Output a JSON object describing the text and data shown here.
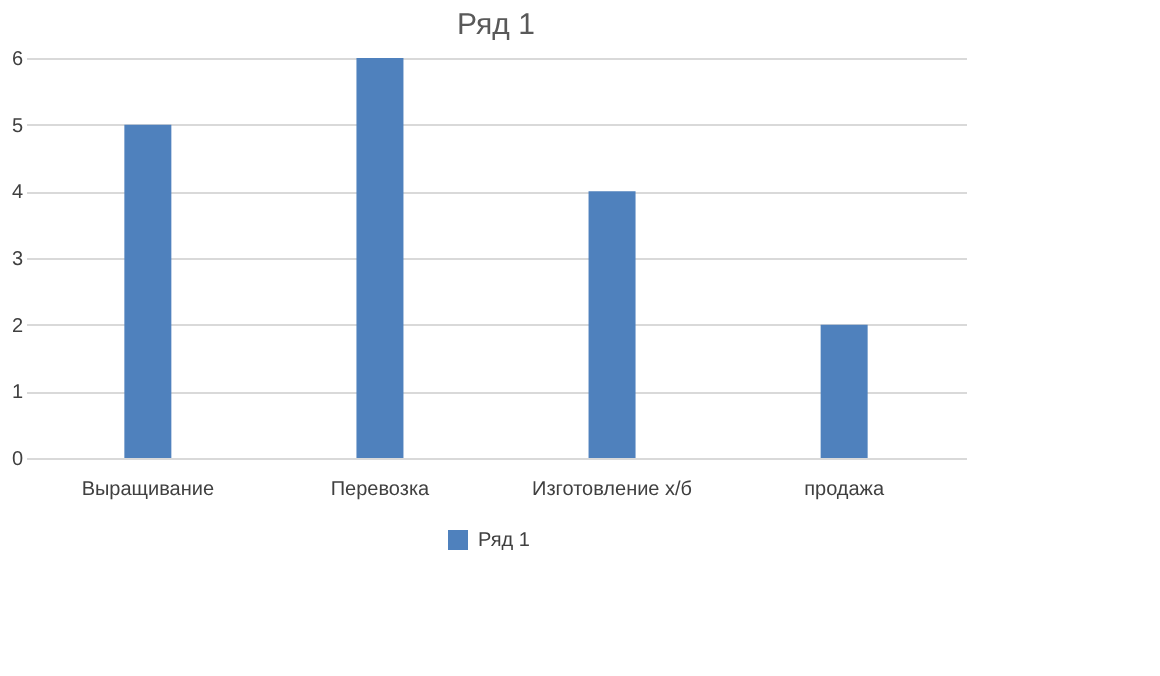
{
  "chart_data": {
    "type": "bar",
    "title": "Ряд 1",
    "categories": [
      "Выращивание",
      "Перевозка",
      "Изготовление х/б",
      "продажа"
    ],
    "series": [
      {
        "name": "Ряд 1",
        "color": "#4f81bd",
        "values": [
          5,
          6,
          4,
          2
        ]
      }
    ],
    "ylim": [
      0,
      6
    ],
    "yticks": [
      0,
      1,
      2,
      3,
      4,
      5,
      6
    ],
    "grid": "y",
    "legend": "bottom"
  }
}
